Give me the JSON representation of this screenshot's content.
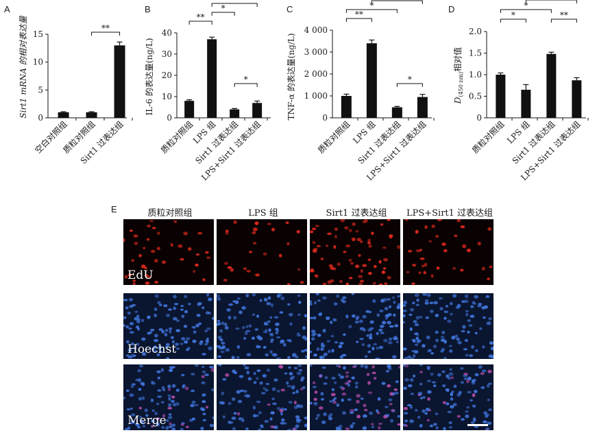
{
  "panels": {
    "A": {
      "letter": "A",
      "ylabel": "Sirt1 mRNA 的相对表达量",
      "yticks": [
        "0",
        "5",
        "10",
        "15"
      ],
      "categories": [
        "空白对照组",
        "质粒对照组",
        "Sirt1 过表达组"
      ],
      "sig": [
        {
          "label": "**"
        }
      ]
    },
    "B": {
      "letter": "B",
      "ylabel": "IL-6 的表达量(ng/L)",
      "yticks": [
        "0",
        "10",
        "20",
        "30",
        "40"
      ],
      "categories": [
        "质粒对照组",
        "LPS 组",
        "Sirt1 过表达组",
        "LPS+Sirt1 过表达组"
      ],
      "sig": [
        {
          "label": "**"
        },
        {
          "label": "*"
        },
        {
          "label": "**"
        },
        {
          "label": "*"
        }
      ]
    },
    "C": {
      "letter": "C",
      "ylabel": "TNF-α 的表达量(ng/L)",
      "yticks": [
        "0",
        "1 000",
        "2 000",
        "3 000",
        "4 000"
      ],
      "categories": [
        "质粒对照组",
        "LPS 组",
        "Sirt1 过表达组",
        "LPS+Sirt1 过表达组"
      ],
      "sig": [
        {
          "label": "**"
        },
        {
          "label": "*"
        },
        {
          "label": "**"
        },
        {
          "label": "*"
        }
      ]
    },
    "D": {
      "letter": "D",
      "ylabel_main": "D",
      "ylabel_sub": "(450 nm)",
      "ylabel_tail": "相对值",
      "yticks": [
        "0",
        "0.5",
        "1.0",
        "1.5",
        "2.0"
      ],
      "categories": [
        "质粒对照组",
        "LPS 组",
        "Sirt1 过表达组",
        "LPS+Sirt1 过表达组"
      ],
      "sig": [
        {
          "label": "*"
        },
        {
          "label": "*"
        },
        {
          "label": "**"
        },
        {
          "label": "*"
        }
      ]
    },
    "E": {
      "letter": "E",
      "columns": [
        "质粒对照组",
        "LPS 组",
        "Sirt1 过表达组",
        "LPS+Sirt1 过表达组"
      ],
      "rows": [
        "EdU",
        "Hoechst",
        "Merge"
      ]
    }
  },
  "colors": {
    "bar": "#111111",
    "edu_bg": "#0a0202",
    "edu_dot": "#d8281c",
    "hoechst_bg": "#0a1530",
    "hoechst_dot": "#3f73d8",
    "merge_dot": "#b04aa6"
  },
  "chart_data": [
    {
      "type": "bar",
      "ylabel": "Sirt1 mRNA 的相对表达量",
      "categories": [
        "空白对照组",
        "质粒对照组",
        "Sirt1 过表达组"
      ],
      "values": [
        1.0,
        1.0,
        13.0
      ],
      "errors": [
        0.1,
        0.1,
        0.6
      ],
      "ylim": [
        0,
        15
      ],
      "comparisons": [
        {
          "from": 1,
          "to": 2,
          "label": "**",
          "level": 0
        }
      ]
    },
    {
      "type": "bar",
      "ylabel": "IL-6 的表达量(ng/L)",
      "categories": [
        "质粒对照组",
        "LPS 组",
        "Sirt1 过表达组",
        "LPS+Sirt1 过表达组"
      ],
      "values": [
        8.0,
        37.0,
        4.0,
        7.0
      ],
      "errors": [
        0.5,
        1.0,
        0.4,
        0.9
      ],
      "ylim": [
        0,
        40
      ],
      "comparisons": [
        {
          "from": 0,
          "to": 1,
          "label": "**",
          "level": 1
        },
        {
          "from": 1,
          "to": 2,
          "label": "*",
          "level": 2
        },
        {
          "from": 1,
          "to": 3,
          "label": "**",
          "level": 3
        },
        {
          "from": 2,
          "to": 3,
          "label": "*",
          "level": 0
        }
      ]
    },
    {
      "type": "bar",
      "ylabel": "TNF-α 的表达量(ng/L)",
      "categories": [
        "质粒对照组",
        "LPS 组",
        "Sirt1 过表达组",
        "LPS+Sirt1 过表达组"
      ],
      "values": [
        1000,
        3400,
        480,
        950
      ],
      "errors": [
        80,
        150,
        40,
        120
      ],
      "ylim": [
        0,
        4000
      ],
      "comparisons": [
        {
          "from": 0,
          "to": 1,
          "label": "**",
          "level": 1
        },
        {
          "from": 0,
          "to": 2,
          "label": "*",
          "level": 2
        },
        {
          "from": 1,
          "to": 3,
          "label": "**",
          "level": 3
        },
        {
          "from": 2,
          "to": 3,
          "label": "*",
          "level": 0
        }
      ]
    },
    {
      "type": "bar",
      "ylabel": "D(450 nm)相对值",
      "categories": [
        "质粒对照组",
        "LPS 组",
        "Sirt1 过表达组",
        "LPS+Sirt1 过表达组"
      ],
      "values": [
        1.0,
        0.65,
        1.48,
        0.87
      ],
      "errors": [
        0.04,
        0.12,
        0.04,
        0.06
      ],
      "ylim": [
        0,
        2.0
      ],
      "comparisons": [
        {
          "from": 0,
          "to": 1,
          "label": "*",
          "level": 1
        },
        {
          "from": 0,
          "to": 2,
          "label": "*",
          "level": 2
        },
        {
          "from": 2,
          "to": 3,
          "label": "**",
          "level": 1
        },
        {
          "from": 1,
          "to": 3,
          "label": "*",
          "level": 3
        }
      ]
    }
  ]
}
